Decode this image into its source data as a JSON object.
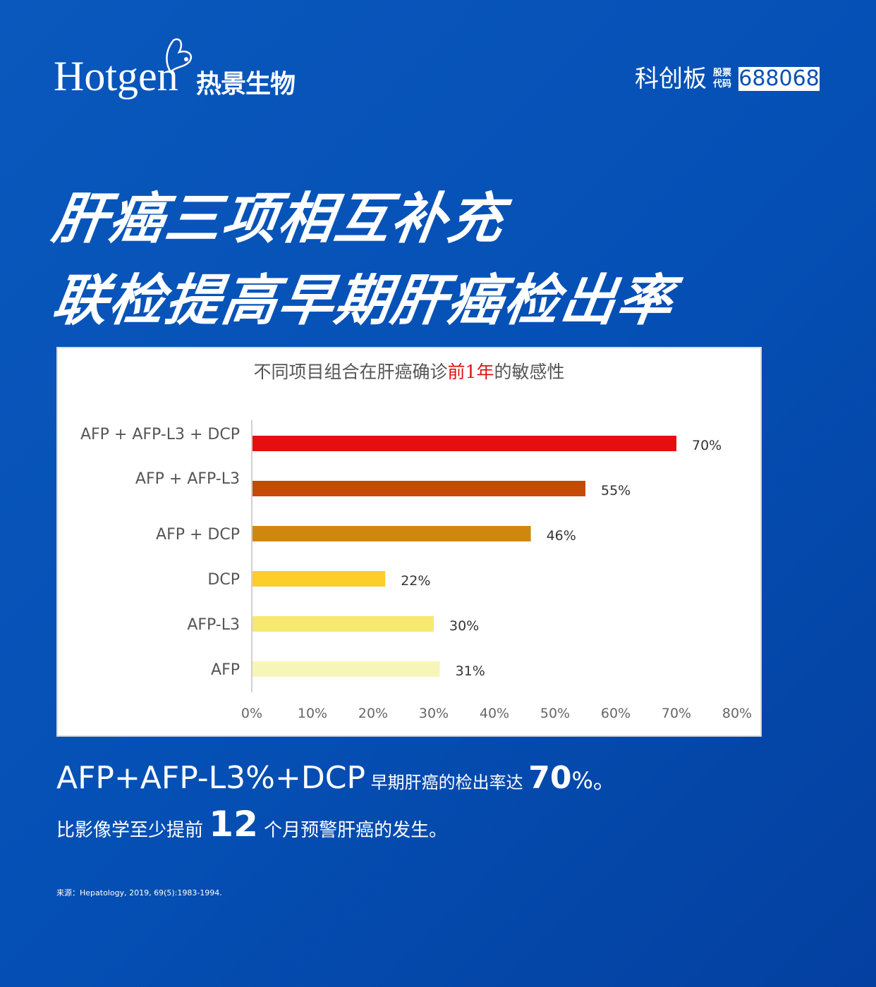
{
  "brand": {
    "logo_en": "Hotgen",
    "logo_cn": "热景生物",
    "board": "科创板",
    "stock_label_1": "股票",
    "stock_label_2": "代码",
    "stock_code": "688068"
  },
  "headline": {
    "line1": "肝癌三项相互补充",
    "line2": "联检提高早期肝癌检出率"
  },
  "chart_data": {
    "type": "bar",
    "orientation": "horizontal",
    "title": "不同项目组合在肝癌确诊前1年的敏感性",
    "title_parts": {
      "pre": "不同项目组合在肝癌确诊",
      "highlight": "前1年",
      "post": "的敏感性"
    },
    "categories": [
      "AFP + AFP-L3 + DCP",
      "AFP + AFP-L3",
      "AFP + DCP",
      "DCP",
      "AFP-L3",
      "AFP"
    ],
    "values": [
      70,
      55,
      46,
      22,
      30,
      31
    ],
    "data_labels": [
      "70%",
      "55%",
      "46%",
      "22%",
      "30%",
      "31%"
    ],
    "colors": [
      "#e60f0f",
      "#c44a06",
      "#d0870f",
      "#fdcd2a",
      "#f7e870",
      "#f8f5b8"
    ],
    "xlim": [
      0,
      80
    ],
    "x_ticks": [
      0,
      10,
      20,
      30,
      40,
      50,
      60,
      70,
      80
    ],
    "x_tick_labels": [
      "0%",
      "10%",
      "20%",
      "30%",
      "40%",
      "50%",
      "60%",
      "70%",
      "80%"
    ],
    "grid": false,
    "legend": "none"
  },
  "summary": {
    "l1_a": "AFP+AFP-L3%+DCP",
    "l1_b": "早期肝癌的检出率达",
    "l1_num": "70",
    "l1_c": "%。",
    "l2_a": "比影像学至少提前",
    "l2_num": "12",
    "l2_b": "个月预警肝癌的发生。"
  },
  "source": "来源：Hepatology, 2019, 69(5):1983-1994."
}
